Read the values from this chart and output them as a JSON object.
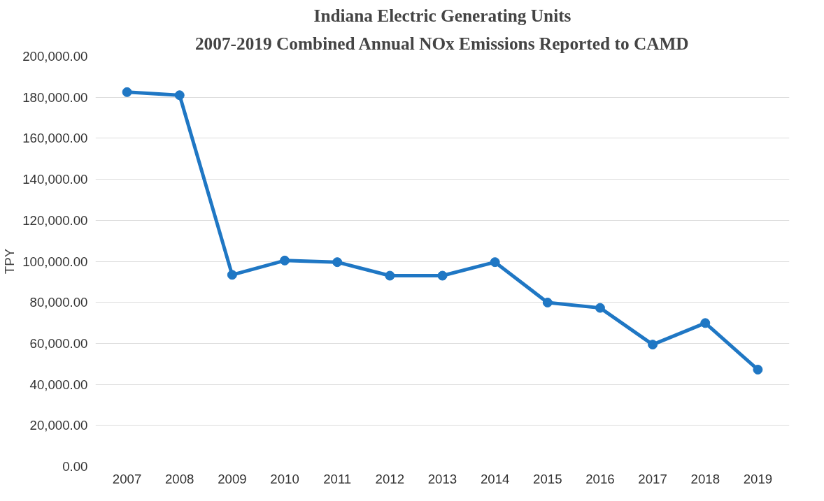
{
  "chart_data": {
    "type": "line",
    "title": "Indiana Electric Generating Units",
    "subtitle": "2007-2019 Combined Annual NOx Emissions Reported to CAMD",
    "ylabel": "TPY",
    "categories": [
      "2007",
      "2008",
      "2009",
      "2010",
      "2011",
      "2012",
      "2013",
      "2014",
      "2015",
      "2016",
      "2017",
      "2018",
      "2019"
    ],
    "series": [
      {
        "color": "#1f77c4",
        "values": [
          182500,
          181000,
          93400,
          100400,
          99600,
          93000,
          93000,
          99600,
          79900,
          77300,
          59400,
          69900,
          47200
        ]
      }
    ],
    "ylim": [
      0,
      200000
    ],
    "yticks": [
      {
        "value": 0,
        "label": "0.00"
      },
      {
        "value": 20000,
        "label": "20,000.00"
      },
      {
        "value": 40000,
        "label": "40,000.00"
      },
      {
        "value": 60000,
        "label": "60,000.00"
      },
      {
        "value": 80000,
        "label": "80,000.00"
      },
      {
        "value": 100000,
        "label": "100,000.00"
      },
      {
        "value": 120000,
        "label": "120,000.00"
      },
      {
        "value": 140000,
        "label": "140,000.00"
      },
      {
        "value": 160000,
        "label": "160,000.00"
      },
      {
        "value": 180000,
        "label": "180,000.00"
      },
      {
        "value": 200000,
        "label": "200,000.00"
      }
    ],
    "grid": "y",
    "marker": "circle",
    "line_style": "solid"
  }
}
